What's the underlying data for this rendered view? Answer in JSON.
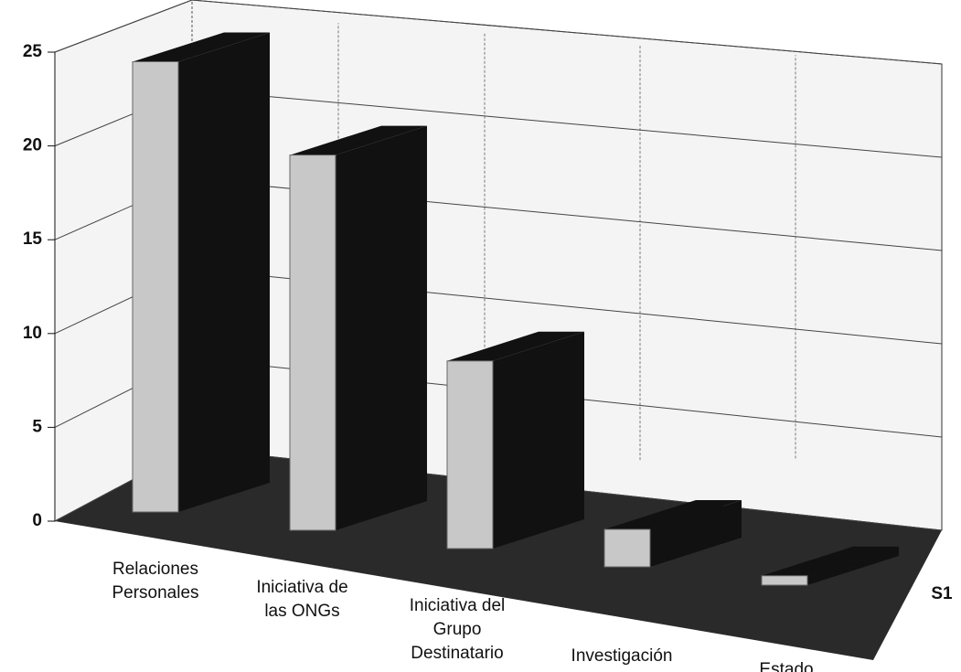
{
  "chart_data": {
    "type": "bar3d",
    "categories": [
      "Relaciones Personales",
      "Iniciativa de las ONGs",
      "Iniciativa del Grupo Destinatario",
      "Investigación",
      "Estado"
    ],
    "series": [
      {
        "name": "S1",
        "color": "#c8c8c8",
        "values": [
          24,
          20,
          10,
          2,
          0.5
        ]
      }
    ],
    "side_color": "#111111",
    "ylim": [
      0,
      25
    ],
    "yticks": [
      0,
      5,
      10,
      15,
      20,
      25
    ],
    "grid": true
  }
}
